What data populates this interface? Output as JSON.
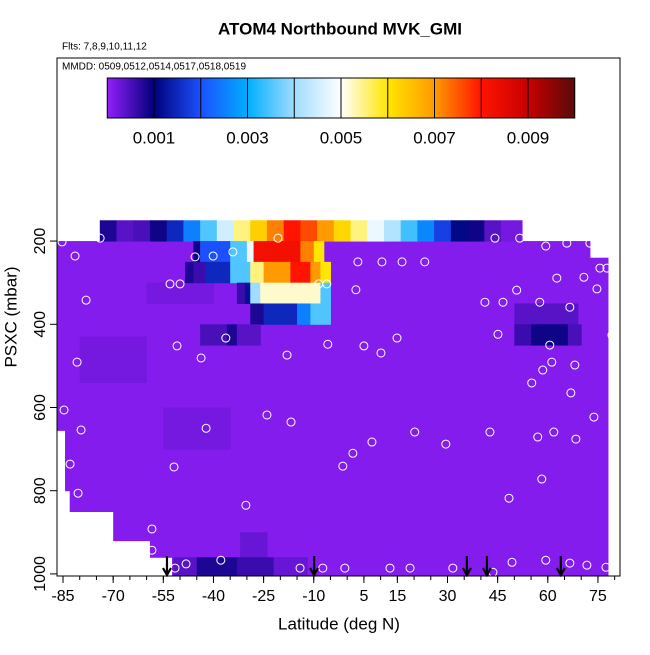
{
  "chart_data": {
    "type": "heatmap",
    "title": "ATOM4 Northbound MVK_GMI",
    "subtitle": "Flts: 7,8,9,10,11,12",
    "annotation": "MMDD: 0509,0512,0514,0517,0518,0519",
    "xlabel": "Latitude (deg N)",
    "ylabel": "PSXC (mbar)",
    "xlim": [
      -86.8,
      81.6
    ],
    "ylim": [
      -240,
      1005
    ],
    "y_reversed": true,
    "xticks": [
      -85,
      -70,
      -55,
      -40,
      -25,
      -10,
      5,
      15,
      30,
      45,
      60,
      75
    ],
    "xminorticks": [
      -85,
      -80,
      -75,
      -70,
      -65,
      -60,
      -55,
      -50,
      -45,
      -40,
      -35,
      -30,
      -25,
      -20,
      -15,
      -10,
      -5,
      0,
      5,
      10,
      15,
      20,
      25,
      30,
      35,
      40,
      45,
      50,
      55,
      60,
      65,
      70,
      75,
      80
    ],
    "yticks": [
      200,
      400,
      600,
      800,
      1000
    ],
    "cbar_lim": [
      0,
      0.01
    ],
    "cbar_ticks": [
      0.001,
      0.003,
      0.005,
      0.007,
      0.009
    ],
    "cbar_lines": [
      0.001,
      0.002,
      0.003,
      0.004,
      0.005,
      0.006,
      0.007,
      0.008,
      0.009
    ],
    "colorscale": [
      [
        0,
        "#921ffa"
      ],
      [
        0.001,
        "#00007a"
      ],
      [
        0.002,
        "#1c50ff"
      ],
      [
        0.003,
        "#00aeff"
      ],
      [
        0.004,
        "#9fdcff"
      ],
      [
        0.005,
        "#ffffff"
      ],
      [
        0.006,
        "#ffe600"
      ],
      [
        0.007,
        "#ff9a00"
      ],
      [
        0.008,
        "#ff1400"
      ],
      [
        0.009,
        "#c80000"
      ],
      [
        0.01,
        "#5a0a0a"
      ]
    ],
    "point_color": "#ffffff",
    "arrow_color": "#000000",
    "cells": [
      [
        -86.8,
        -84.4,
        200,
        655,
        0.0001
      ],
      [
        -84.4,
        -83,
        200,
        800,
        0.0001
      ],
      [
        -83,
        -70,
        200,
        850,
        0.0001
      ],
      [
        -70,
        -59,
        200,
        920,
        0.0001
      ],
      [
        -59,
        -52.4,
        200,
        960,
        0.0001
      ],
      [
        -52.4,
        72.6,
        200,
        1005,
        0.0001
      ],
      [
        72.6,
        78,
        240,
        1005,
        0.0001
      ],
      [
        -80,
        -60,
        430,
        540,
        0.0002
      ],
      [
        -55,
        -35,
        600,
        700,
        0.0002
      ],
      [
        -60,
        -40,
        300,
        350,
        0.0002
      ],
      [
        -74,
        -69,
        150,
        200,
        0.0008
      ],
      [
        -69,
        -64,
        150,
        200,
        0.0004
      ],
      [
        -64,
        -59,
        150,
        200,
        0.0005
      ],
      [
        -59,
        -54,
        150,
        200,
        0.0009
      ],
      [
        -54,
        -49,
        150,
        200,
        0.0015
      ],
      [
        -49,
        -44,
        150,
        200,
        0.0025
      ],
      [
        -44,
        -39,
        150,
        200,
        0.0035
      ],
      [
        -39,
        -34,
        150,
        200,
        0.0045
      ],
      [
        -34,
        -29,
        150,
        200,
        0.0055
      ],
      [
        -29,
        -24,
        150,
        200,
        0.0063
      ],
      [
        -24,
        -19,
        150,
        200,
        0.0072
      ],
      [
        -19,
        -14,
        150,
        200,
        0.008
      ],
      [
        -14,
        -9,
        150,
        200,
        0.0076
      ],
      [
        -9,
        -4,
        150,
        200,
        0.007
      ],
      [
        -4,
        1,
        150,
        200,
        0.0062
      ],
      [
        1,
        6,
        150,
        200,
        0.0055
      ],
      [
        6,
        11,
        150,
        200,
        0.0048
      ],
      [
        11,
        16,
        150,
        200,
        0.0042
      ],
      [
        16,
        21,
        150,
        200,
        0.0034
      ],
      [
        21,
        26,
        150,
        200,
        0.0026
      ],
      [
        26,
        31,
        150,
        200,
        0.0018
      ],
      [
        31,
        36,
        150,
        200,
        0.0011
      ],
      [
        36,
        41,
        150,
        200,
        0.0009
      ],
      [
        41,
        46,
        150,
        200,
        0.0004
      ],
      [
        46,
        52.3,
        150,
        200,
        0.0002
      ],
      [
        -46,
        -44,
        200,
        250,
        0.0009
      ],
      [
        -44,
        -35,
        200,
        250,
        0.002
      ],
      [
        -35,
        -30,
        200,
        250,
        0.0035
      ],
      [
        -30,
        -28,
        200,
        250,
        0.0048
      ],
      [
        -28,
        -14,
        200,
        250,
        0.0082
      ],
      [
        -14,
        -10,
        200,
        250,
        0.0072
      ],
      [
        -10,
        -7,
        200,
        250,
        0.006
      ],
      [
        -48.5,
        -46,
        250,
        300,
        0.0008
      ],
      [
        -46,
        -42.5,
        250,
        300,
        0.0006
      ],
      [
        -42.5,
        -35,
        250,
        300,
        0.0015
      ],
      [
        -35,
        -29,
        250,
        300,
        0.0035
      ],
      [
        -29,
        -25,
        250,
        300,
        0.0055
      ],
      [
        -25,
        -17,
        250,
        300,
        0.007
      ],
      [
        -17,
        -11,
        250,
        300,
        0.008
      ],
      [
        -11,
        -8,
        250,
        300,
        0.007
      ],
      [
        -8,
        -5,
        250,
        300,
        0.006
      ],
      [
        -33,
        -30.6,
        300,
        350,
        0.0006
      ],
      [
        -30.6,
        -29,
        300,
        350,
        0.0012
      ],
      [
        -29,
        -26,
        300,
        350,
        0.004
      ],
      [
        -26,
        -8,
        300,
        350,
        0.0052
      ],
      [
        -8,
        -5,
        300,
        350,
        0.0035
      ],
      [
        -29,
        -25,
        350,
        400,
        0.0008
      ],
      [
        -25,
        -15,
        350,
        400,
        0.0015
      ],
      [
        -15,
        -11,
        350,
        400,
        0.0025
      ],
      [
        -11,
        -5,
        350,
        400,
        0.0035
      ],
      [
        -44,
        -36,
        400,
        450,
        0.0005
      ],
      [
        -36,
        -33,
        400,
        450,
        0.0008
      ],
      [
        -33,
        -26,
        400,
        450,
        0.0004
      ],
      [
        50,
        69,
        350,
        400,
        0.0004
      ],
      [
        50,
        55,
        400,
        450,
        0.0006
      ],
      [
        55,
        66,
        400,
        450,
        0.0009
      ],
      [
        66,
        70,
        400,
        450,
        0.0005
      ],
      [
        -32,
        -24,
        900,
        960,
        0.0003
      ],
      [
        -52,
        -45,
        960,
        1005,
        0.0004
      ],
      [
        -45,
        -33,
        960,
        1005,
        0.0008
      ],
      [
        -33,
        -22,
        960,
        1005,
        0.0006
      ],
      [
        -22,
        -12,
        960,
        1005,
        0.0003
      ]
    ],
    "points": [
      [
        -85.3,
        202
      ],
      [
        -73.9,
        193
      ],
      [
        -81.4,
        236
      ],
      [
        -45.5,
        238
      ],
      [
        -40.1,
        236
      ],
      [
        -34.2,
        226
      ],
      [
        -20.7,
        193
      ],
      [
        3.2,
        250
      ],
      [
        10.4,
        250
      ],
      [
        16.4,
        250
      ],
      [
        23.2,
        250
      ],
      [
        2.6,
        317
      ],
      [
        -53,
        303
      ],
      [
        -50,
        303
      ],
      [
        -8.5,
        303
      ],
      [
        -6.1,
        303
      ],
      [
        -78.1,
        342
      ],
      [
        -36.3,
        433
      ],
      [
        50.7,
        318
      ],
      [
        41.2,
        347
      ],
      [
        46.6,
        347
      ],
      [
        57.6,
        347
      ],
      [
        66.6,
        359
      ],
      [
        74.7,
        315
      ],
      [
        70.8,
        287
      ],
      [
        75.6,
        265
      ],
      [
        77.7,
        265
      ],
      [
        62.7,
        289
      ],
      [
        44.2,
        193
      ],
      [
        51.6,
        193
      ],
      [
        59.4,
        212
      ],
      [
        65.7,
        205
      ],
      [
        72.6,
        205
      ],
      [
        -50.9,
        452
      ],
      [
        5,
        452
      ],
      [
        14.9,
        433
      ],
      [
        -5.8,
        448
      ],
      [
        -18,
        474
      ],
      [
        -43.7,
        481
      ],
      [
        10.1,
        469
      ],
      [
        45.1,
        424
      ],
      [
        79.2,
        426
      ],
      [
        60.6,
        450
      ],
      [
        -80.8,
        491
      ],
      [
        68.1,
        498
      ],
      [
        61.2,
        491
      ],
      [
        58.5,
        510
      ],
      [
        55.2,
        541
      ],
      [
        66.9,
        565
      ],
      [
        -84.7,
        606
      ],
      [
        73.8,
        623
      ],
      [
        -24,
        618
      ],
      [
        -16.8,
        635
      ],
      [
        -42.2,
        650
      ],
      [
        -79.6,
        654
      ],
      [
        61.8,
        659
      ],
      [
        57,
        671
      ],
      [
        68.4,
        676
      ],
      [
        42.7,
        659
      ],
      [
        29.5,
        688
      ],
      [
        7.4,
        683
      ],
      [
        20.2,
        659
      ],
      [
        1.7,
        710
      ],
      [
        -1.3,
        741
      ],
      [
        -82.9,
        736
      ],
      [
        -51.8,
        743
      ],
      [
        58.2,
        772
      ],
      [
        48.4,
        818
      ],
      [
        -30.3,
        835
      ],
      [
        -58.4,
        892
      ],
      [
        -58.4,
        943
      ],
      [
        -48.2,
        976
      ],
      [
        -37.8,
        967
      ],
      [
        -51.5,
        986
      ],
      [
        -14.1,
        986
      ],
      [
        -7.3,
        986
      ],
      [
        -0.7,
        986
      ],
      [
        12.8,
        986
      ],
      [
        18.8,
        986
      ],
      [
        31.6,
        986
      ],
      [
        43.6,
        996
      ],
      [
        49.3,
        972
      ],
      [
        59.4,
        967
      ],
      [
        66.6,
        974
      ],
      [
        71.7,
        979
      ],
      [
        77.4,
        984
      ],
      [
        -80.5,
        806
      ]
    ],
    "arrows": [
      -53.9,
      -9.9,
      35.8,
      41.8,
      63.9
    ]
  }
}
